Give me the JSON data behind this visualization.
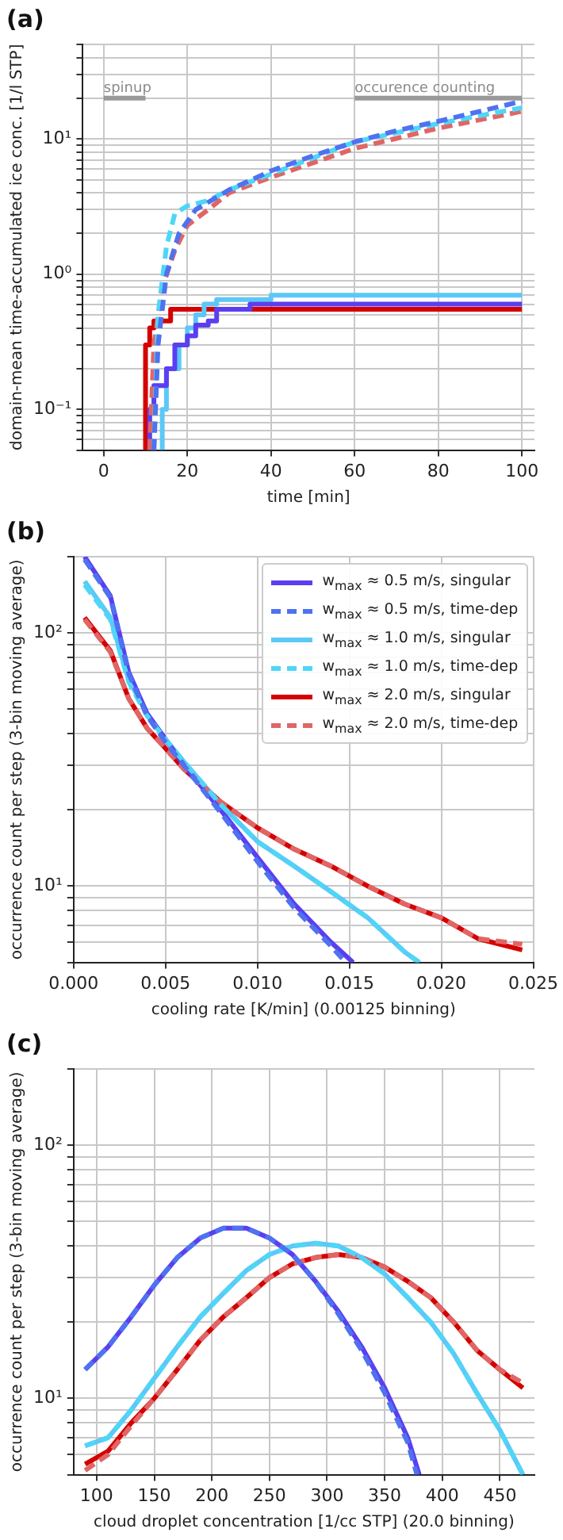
{
  "chart_data": [
    {
      "type": "line",
      "title": "(a)",
      "xlabel": "time [min]",
      "ylabel": "domain-mean time-accumulated ice conc. [1/l STP]",
      "log": "y",
      "grid": true,
      "xlim": [
        -5,
        103
      ],
      "xticks": [
        0,
        20,
        40,
        60,
        80,
        100
      ],
      "ylim": [
        0.05,
        50
      ],
      "yticks": [
        {
          "value": 0.05,
          "label": null
        },
        {
          "value": 0.06,
          "label": null
        },
        {
          "value": 0.07,
          "label": null
        },
        {
          "value": 0.08,
          "label": null
        },
        {
          "value": 0.09,
          "label": null
        },
        {
          "value": 0.1,
          "label": "10⁻¹"
        },
        {
          "value": 0.2,
          "label": null
        },
        {
          "value": 0.3,
          "label": null
        },
        {
          "value": 0.4,
          "label": null
        },
        {
          "value": 0.5,
          "label": null
        },
        {
          "value": 0.6,
          "label": null
        },
        {
          "value": 0.7,
          "label": null
        },
        {
          "value": 0.8,
          "label": null
        },
        {
          "value": 0.9,
          "label": null
        },
        {
          "value": 1,
          "label": "10⁰"
        },
        {
          "value": 2,
          "label": null
        },
        {
          "value": 3,
          "label": null
        },
        {
          "value": 4,
          "label": null
        },
        {
          "value": 5,
          "label": null
        },
        {
          "value": 6,
          "label": null
        },
        {
          "value": 7,
          "label": null
        },
        {
          "value": 8,
          "label": null
        },
        {
          "value": 9,
          "label": null
        },
        {
          "value": 10,
          "label": "10¹"
        },
        {
          "value": 20,
          "label": null
        },
        {
          "value": 30,
          "label": null
        },
        {
          "value": 40,
          "label": null
        },
        {
          "value": 50,
          "label": null
        }
      ],
      "annotations": [
        {
          "text": "spinup",
          "x": 0,
          "y": 20
        },
        {
          "text": "occurence counting",
          "x": 60,
          "y": 20
        }
      ],
      "series": [
        {
          "type": "line",
          "color": "#999999",
          "x": [
            0,
            10
          ],
          "values": [
            20,
            20
          ]
        },
        {
          "type": "line",
          "color": "#999999",
          "x": [
            60,
            100
          ],
          "values": [
            20,
            20
          ]
        },
        {
          "type": "step",
          "color": "#5a3ff0",
          "x": [
            11,
            12,
            15,
            17,
            20,
            22,
            25,
            27,
            35,
            100
          ],
          "values": [
            0.05,
            0.1,
            0.15,
            0.2,
            0.3,
            0.35,
            0.42,
            0.45,
            0.55,
            0.6
          ]
        },
        {
          "type": "step",
          "color": "#5cc8f7",
          "x": [
            14,
            15,
            18,
            20,
            22,
            24,
            27,
            40,
            100
          ],
          "values": [
            0.05,
            0.1,
            0.2,
            0.3,
            0.4,
            0.5,
            0.6,
            0.65,
            0.7
          ]
        },
        {
          "type": "step",
          "color": "#d50000",
          "x": [
            10,
            11,
            12,
            16,
            17,
            100
          ],
          "values": [
            0.05,
            0.3,
            0.4,
            0.45,
            0.55,
            0.55
          ]
        },
        {
          "type": "line",
          "color": "#4e72f0",
          "line_style": "dashed",
          "x": [
            12,
            13,
            15,
            18,
            22,
            30,
            40,
            50,
            60,
            70,
            80,
            90,
            100
          ],
          "values": [
            0.05,
            0.3,
            1,
            2,
            3,
            4.2,
            5.8,
            7.5,
            9.5,
            11.5,
            13.5,
            16,
            19
          ]
        },
        {
          "type": "line",
          "color": "#4fd6f7",
          "line_style": "dashed",
          "x": [
            12,
            13,
            15,
            17,
            20,
            25,
            30,
            40,
            60,
            80,
            100
          ],
          "values": [
            0.05,
            0.5,
            1.6,
            2.8,
            3.2,
            3.5,
            4.2,
            5.5,
            9.5,
            13,
            17
          ]
        },
        {
          "type": "line",
          "color": "#e06666",
          "line_style": "dashed",
          "x": [
            11,
            12,
            14,
            17,
            20,
            25,
            30,
            40,
            60,
            80,
            100
          ],
          "values": [
            0.05,
            0.3,
            0.8,
            1.5,
            2.3,
            3,
            4,
            5.2,
            8.5,
            12,
            16
          ]
        }
      ]
    },
    {
      "type": "line",
      "title": "(b)",
      "xlabel": "cooling rate [K/min] (0.00125 binning)",
      "ylabel": "occurrence count per step (3-bin moving average)",
      "log": "y",
      "grid": true,
      "legend": "top right",
      "xlim": [
        0,
        0.025
      ],
      "xticks": [
        {
          "value": 0,
          "label": "0.000"
        },
        {
          "value": 0.005,
          "label": "0.005"
        },
        {
          "value": 0.01,
          "label": "0.010"
        },
        {
          "value": 0.015,
          "label": "0.015"
        },
        {
          "value": 0.02,
          "label": "0.020"
        },
        {
          "value": 0.025,
          "label": "0.025"
        }
      ],
      "ylim": [
        5,
        200
      ],
      "yticks": [
        {
          "value": 5,
          "label": null
        },
        {
          "value": 6,
          "label": null
        },
        {
          "value": 7,
          "label": null
        },
        {
          "value": 8,
          "label": null
        },
        {
          "value": 9,
          "label": null
        },
        {
          "value": 10,
          "label": "10¹"
        },
        {
          "value": 20,
          "label": null
        },
        {
          "value": 30,
          "label": null
        },
        {
          "value": 40,
          "label": null
        },
        {
          "value": 50,
          "label": null
        },
        {
          "value": 60,
          "label": null
        },
        {
          "value": 70,
          "label": null
        },
        {
          "value": 80,
          "label": null
        },
        {
          "value": 90,
          "label": null
        },
        {
          "value": 100,
          "label": "10²"
        },
        {
          "value": 200,
          "label": null
        }
      ],
      "series": [
        {
          "name": "w$_{max}$ ≈ 0.5 m/s, singular",
          "type": "line",
          "color": "#5a3ff0",
          "x": [
            0.0006,
            0.002,
            0.003,
            0.004,
            0.005,
            0.006,
            0.008,
            0.01,
            0.012,
            0.014,
            0.0152
          ],
          "values": [
            200,
            140,
            70,
            48,
            38,
            30,
            20,
            13,
            8.5,
            6,
            5
          ]
        },
        {
          "name": "w$_{max}$ ≈ 0.5 m/s, time-dep",
          "type": "line",
          "line_style": "dashed",
          "color": "#4e72f0",
          "x": [
            0.0006,
            0.002,
            0.003,
            0.004,
            0.005,
            0.006,
            0.008,
            0.01,
            0.012,
            0.014,
            0.0148
          ],
          "values": [
            195,
            138,
            69,
            47,
            37,
            30,
            19.5,
            12.5,
            8.2,
            5.8,
            5
          ]
        },
        {
          "name": "w$_{max}$ ≈ 1.0 m/s, singular",
          "type": "line",
          "color": "#5cc8f7",
          "x": [
            0.0006,
            0.002,
            0.003,
            0.004,
            0.005,
            0.006,
            0.008,
            0.01,
            0.012,
            0.014,
            0.016,
            0.018,
            0.0188
          ],
          "values": [
            160,
            115,
            65,
            48,
            38,
            31,
            21,
            15,
            12,
            9.5,
            7.5,
            5.5,
            5
          ]
        },
        {
          "name": "w$_{max}$ ≈ 1.0 m/s, time-dep",
          "type": "line",
          "line_style": "dashed",
          "color": "#4fd6f7",
          "x": [
            0.0006,
            0.002,
            0.003,
            0.004,
            0.005,
            0.006,
            0.008,
            0.01,
            0.012,
            0.014,
            0.016,
            0.018,
            0.0188
          ],
          "values": [
            155,
            113,
            64,
            47,
            38,
            31,
            21,
            15,
            12,
            9.5,
            7.5,
            5.5,
            5
          ]
        },
        {
          "name": "w$_{max}$ ≈ 2.0 m/s, singular",
          "type": "line",
          "color": "#d50000",
          "x": [
            0.0006,
            0.002,
            0.003,
            0.004,
            0.005,
            0.006,
            0.007,
            0.008,
            0.01,
            0.012,
            0.014,
            0.016,
            0.018,
            0.02,
            0.022,
            0.0244
          ],
          "values": [
            115,
            85,
            55,
            42,
            35,
            29,
            25,
            21.5,
            17,
            14,
            12,
            10,
            8.5,
            7.5,
            6.2,
            5.6
          ]
        },
        {
          "name": "w$_{max}$ ≈ 2.0 m/s, time-dep",
          "type": "line",
          "line_style": "dashed",
          "color": "#e06666",
          "x": [
            0.0006,
            0.002,
            0.003,
            0.004,
            0.005,
            0.006,
            0.007,
            0.008,
            0.01,
            0.012,
            0.014,
            0.016,
            0.018,
            0.02,
            0.022,
            0.0244
          ],
          "values": [
            113,
            84,
            55,
            42,
            35,
            29,
            25,
            21.5,
            17,
            14,
            12,
            10,
            8.5,
            7.5,
            6.2,
            5.9
          ]
        }
      ]
    },
    {
      "type": "line",
      "title": "(c)",
      "xlabel": "cloud droplet concentration [1/cc STP] (20.0 binning)",
      "ylabel": "occurrence count per step (3-bin moving average)",
      "log": "y",
      "grid": true,
      "xlim": [
        80,
        480
      ],
      "xticks": [
        100,
        150,
        200,
        250,
        300,
        350,
        400,
        450
      ],
      "ylim": [
        5,
        200
      ],
      "yticks": [
        {
          "value": 5,
          "label": null
        },
        {
          "value": 6,
          "label": null
        },
        {
          "value": 7,
          "label": null
        },
        {
          "value": 8,
          "label": null
        },
        {
          "value": 9,
          "label": null
        },
        {
          "value": 10,
          "label": "10¹"
        },
        {
          "value": 20,
          "label": null
        },
        {
          "value": 30,
          "label": null
        },
        {
          "value": 40,
          "label": null
        },
        {
          "value": 50,
          "label": null
        },
        {
          "value": 60,
          "label": null
        },
        {
          "value": 70,
          "label": null
        },
        {
          "value": 80,
          "label": null
        },
        {
          "value": 90,
          "label": null
        },
        {
          "value": 100,
          "label": "10²"
        },
        {
          "value": 200,
          "label": null
        }
      ],
      "series": [
        {
          "type": "line",
          "color": "#5a3ff0",
          "x": [
            90,
            110,
            130,
            150,
            170,
            190,
            210,
            230,
            250,
            270,
            290,
            310,
            330,
            350,
            370,
            380
          ],
          "values": [
            13,
            16,
            21,
            28,
            36,
            43,
            47,
            47,
            43,
            37,
            29,
            22,
            16,
            11,
            7,
            5
          ]
        },
        {
          "type": "line",
          "line_style": "dashed",
          "color": "#4e72f0",
          "x": [
            90,
            110,
            130,
            150,
            170,
            190,
            210,
            230,
            250,
            270,
            290,
            310,
            330,
            350,
            370,
            378
          ],
          "values": [
            13,
            16,
            21,
            28,
            36,
            43,
            47,
            47,
            43,
            37,
            29,
            21.5,
            15.5,
            10.5,
            6.7,
            5
          ]
        },
        {
          "type": "line",
          "color": "#5cc8f7",
          "x": [
            90,
            110,
            130,
            150,
            170,
            190,
            210,
            230,
            250,
            270,
            290,
            310,
            330,
            350,
            370,
            390,
            410,
            430,
            450,
            470
          ],
          "values": [
            6.5,
            7,
            9,
            12,
            16,
            21,
            26,
            32,
            37,
            40,
            41,
            40,
            36,
            31,
            25,
            20,
            15,
            10.5,
            7.5,
            5
          ]
        },
        {
          "type": "line",
          "line_style": "dashed",
          "color": "#4fd6f7",
          "x": [
            90,
            110,
            130,
            150,
            170,
            190,
            210,
            230,
            250,
            270,
            290,
            310,
            330,
            350,
            370,
            390,
            410,
            430,
            450,
            470
          ],
          "values": [
            6.5,
            7,
            9,
            12,
            16,
            21,
            26,
            32,
            37,
            40,
            41,
            40,
            36,
            31,
            25,
            20,
            15,
            10.5,
            7.5,
            5
          ]
        },
        {
          "type": "line",
          "color": "#d50000",
          "x": [
            90,
            110,
            130,
            150,
            170,
            190,
            210,
            230,
            250,
            270,
            290,
            310,
            330,
            350,
            370,
            390,
            410,
            430,
            450,
            470
          ],
          "values": [
            5.5,
            6.2,
            8,
            10,
            13,
            17,
            21,
            25,
            30,
            34,
            36,
            37,
            36,
            33,
            29,
            25,
            20,
            15.5,
            13,
            11
          ]
        },
        {
          "type": "line",
          "line_style": "dashed",
          "color": "#e06666",
          "x": [
            90,
            110,
            130,
            150,
            170,
            190,
            210,
            230,
            250,
            270,
            290,
            310,
            330,
            350,
            370,
            390,
            410,
            430,
            450,
            470
          ],
          "values": [
            5.2,
            6,
            7.8,
            10,
            13,
            17,
            21,
            25,
            30,
            34,
            36,
            37,
            36,
            33,
            29,
            25,
            20,
            15.5,
            13,
            11.5
          ]
        }
      ]
    }
  ]
}
